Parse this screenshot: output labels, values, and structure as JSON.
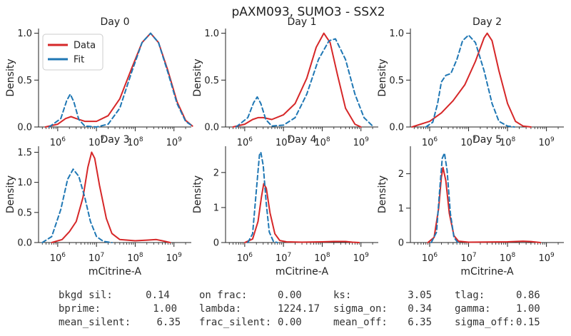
{
  "title": "pAXM093, SUMO3 - SSX2",
  "legend": {
    "items": [
      {
        "label": "Data",
        "color": "#d62728"
      },
      {
        "label": "Fit",
        "color": "#1f77b4"
      }
    ]
  },
  "chart_data": {
    "type": "line",
    "x_scale": "log",
    "xlabel": "mCitrine-A",
    "ylabel": "Density",
    "x_tick_labels": [
      "10^6",
      "10^7",
      "10^8",
      "10^9"
    ],
    "panels": [
      {
        "title": "Day 0",
        "ylim": [
          0,
          1.05
        ],
        "yticks": [
          "0.0",
          "0.5",
          "1.0"
        ],
        "series": [
          {
            "name": "Data",
            "color": "#d62728",
            "style": "solid",
            "points": [
              [
                480000.0,
                0
              ],
              [
                1000000.0,
                0.03
              ],
              [
                1600000.0,
                0.09
              ],
              [
                2200000.0,
                0.11
              ],
              [
                3000000.0,
                0.09
              ],
              [
                5000000.0,
                0.06
              ],
              [
                10000000.0,
                0.06
              ],
              [
                20000000.0,
                0.12
              ],
              [
                40000000.0,
                0.3
              ],
              [
                80000000.0,
                0.62
              ],
              [
                150000000.0,
                0.9
              ],
              [
                250000000.0,
                1.0
              ],
              [
                400000000.0,
                0.9
              ],
              [
                700000000.0,
                0.6
              ],
              [
                1200000000.0,
                0.27
              ],
              [
                2000000000.0,
                0.07
              ],
              [
                3000000000.0,
                0.01
              ]
            ]
          },
          {
            "name": "Fit",
            "color": "#1f77b4",
            "style": "dashed",
            "points": [
              [
                600000.0,
                0
              ],
              [
                1200000.0,
                0.09
              ],
              [
                1700000.0,
                0.28
              ],
              [
                2100000.0,
                0.35
              ],
              [
                2600000.0,
                0.27
              ],
              [
                3500000.0,
                0.08
              ],
              [
                5000000.0,
                0.01
              ],
              [
                10000000.0,
                0
              ],
              [
                20000000.0,
                0.03
              ],
              [
                40000000.0,
                0.2
              ],
              [
                80000000.0,
                0.58
              ],
              [
                150000000.0,
                0.9
              ],
              [
                250000000.0,
                1.0
              ],
              [
                400000000.0,
                0.9
              ],
              [
                700000000.0,
                0.58
              ],
              [
                1200000000.0,
                0.25
              ],
              [
                2000000000.0,
                0.06
              ],
              [
                3000000000.0,
                0.01
              ]
            ]
          }
        ]
      },
      {
        "title": "Day 1",
        "ylim": [
          0,
          1.05
        ],
        "yticks": [
          "0.0",
          "0.5",
          "1.0"
        ],
        "series": [
          {
            "name": "Data",
            "color": "#d62728",
            "style": "solid",
            "points": [
              [
                500000.0,
                0
              ],
              [
                1000000.0,
                0.03
              ],
              [
                1600000.0,
                0.08
              ],
              [
                2200000.0,
                0.1
              ],
              [
                3000000.0,
                0.1
              ],
              [
                5000000.0,
                0.08
              ],
              [
                10000000.0,
                0.13
              ],
              [
                20000000.0,
                0.25
              ],
              [
                40000000.0,
                0.52
              ],
              [
                70000000.0,
                0.85
              ],
              [
                110000000.0,
                1.0
              ],
              [
                160000000.0,
                0.9
              ],
              [
                250000000.0,
                0.55
              ],
              [
                400000000.0,
                0.2
              ],
              [
                700000000.0,
                0.03
              ],
              [
                1000000000.0,
                0.0
              ]
            ]
          },
          {
            "name": "Fit",
            "color": "#1f77b4",
            "style": "dashed",
            "points": [
              [
                600000.0,
                0
              ],
              [
                1200000.0,
                0.1
              ],
              [
                1700000.0,
                0.26
              ],
              [
                2100000.0,
                0.32
              ],
              [
                2600000.0,
                0.25
              ],
              [
                3500000.0,
                0.08
              ],
              [
                5000000.0,
                0.01
              ],
              [
                10000000.0,
                0.02
              ],
              [
                20000000.0,
                0.1
              ],
              [
                40000000.0,
                0.35
              ],
              [
                80000000.0,
                0.72
              ],
              [
                150000000.0,
                0.92
              ],
              [
                220000000.0,
                0.94
              ],
              [
                400000000.0,
                0.72
              ],
              [
                700000000.0,
                0.35
              ],
              [
                1200000000.0,
                0.1
              ],
              [
                2000000000.0,
                0.01
              ]
            ]
          }
        ]
      },
      {
        "title": "Day 2",
        "ylim": [
          0,
          1.05
        ],
        "yticks": [
          "0.0",
          "0.5",
          "1.0"
        ],
        "series": [
          {
            "name": "Data",
            "color": "#d62728",
            "style": "solid",
            "points": [
              [
                350000.0,
                0
              ],
              [
                1000000.0,
                0.06
              ],
              [
                2000000.0,
                0.15
              ],
              [
                4000000.0,
                0.28
              ],
              [
                8000000.0,
                0.45
              ],
              [
                15000000.0,
                0.7
              ],
              [
                25000000.0,
                0.95
              ],
              [
                30000000.0,
                1.0
              ],
              [
                40000000.0,
                0.92
              ],
              [
                60000000.0,
                0.6
              ],
              [
                100000000.0,
                0.25
              ],
              [
                160000000.0,
                0.06
              ],
              [
                250000000.0,
                0.01
              ],
              [
                400000000.0,
                0
              ]
            ]
          },
          {
            "name": "Fit",
            "color": "#1f77b4",
            "style": "dashed",
            "points": [
              [
                800000.0,
                0
              ],
              [
                1200000.0,
                0.05
              ],
              [
                1600000.0,
                0.25
              ],
              [
                2000000.0,
                0.48
              ],
              [
                2600000.0,
                0.55
              ],
              [
                3500000.0,
                0.57
              ],
              [
                5000000.0,
                0.72
              ],
              [
                7000000.0,
                0.92
              ],
              [
                10000000.0,
                0.98
              ],
              [
                15000000.0,
                0.9
              ],
              [
                25000000.0,
                0.6
              ],
              [
                40000000.0,
                0.25
              ],
              [
                60000000.0,
                0.06
              ],
              [
                100000000.0,
                0.01
              ],
              [
                150000000.0,
                0
              ]
            ]
          }
        ]
      },
      {
        "title": "Day 3",
        "ylim": [
          0,
          1.6
        ],
        "yticks": [
          "0.0",
          "0.5",
          "1.0",
          "1.5"
        ],
        "series": [
          {
            "name": "Data",
            "color": "#d62728",
            "style": "solid",
            "points": [
              [
                700000.0,
                0
              ],
              [
                1300000.0,
                0.05
              ],
              [
                2000000.0,
                0.18
              ],
              [
                3000000.0,
                0.35
              ],
              [
                4500000.0,
                0.75
              ],
              [
                6000000.0,
                1.25
              ],
              [
                7500000.0,
                1.5
              ],
              [
                9000000.0,
                1.4
              ],
              [
                12000000.0,
                0.95
              ],
              [
                18000000.0,
                0.4
              ],
              [
                25000000.0,
                0.15
              ],
              [
                40000000.0,
                0.05
              ],
              [
                100000000.0,
                0.03
              ],
              [
                200000000.0,
                0.04
              ],
              [
                350000000.0,
                0.05
              ],
              [
                500000000.0,
                0.03
              ],
              [
                800000000.0,
                0
              ]
            ]
          },
          {
            "name": "Fit",
            "color": "#1f77b4",
            "style": "dashed",
            "points": [
              [
                400000.0,
                0
              ],
              [
                700000.0,
                0.1
              ],
              [
                1200000.0,
                0.55
              ],
              [
                1800000.0,
                1.05
              ],
              [
                2500000.0,
                1.22
              ],
              [
                3500000.0,
                1.1
              ],
              [
                5000000.0,
                0.75
              ],
              [
                7000000.0,
                0.35
              ],
              [
                10000000.0,
                0.1
              ],
              [
                15000000.0,
                0.02
              ],
              [
                25000000.0,
                0
              ]
            ]
          }
        ]
      },
      {
        "title": "Day 4",
        "ylim": [
          0,
          2.75
        ],
        "yticks": [
          "0",
          "1",
          "2"
        ],
        "series": [
          {
            "name": "Data",
            "color": "#d62728",
            "style": "solid",
            "points": [
              [
                1000000.0,
                0
              ],
              [
                1600000.0,
                0.1
              ],
              [
                2200000.0,
                0.6
              ],
              [
                2700000.0,
                1.3
              ],
              [
                3100000.0,
                1.68
              ],
              [
                3600000.0,
                1.55
              ],
              [
                4500000.0,
                0.85
              ],
              [
                6000000.0,
                0.25
              ],
              [
                8000000.0,
                0.06
              ],
              [
                12000000.0,
                0.02
              ],
              [
                30000000.0,
                0.01
              ],
              [
                100000000.0,
                0.02
              ],
              [
                200000000.0,
                0.03
              ],
              [
                400000000.0,
                0.03
              ],
              [
                600000000.0,
                0.01
              ],
              [
                900000000.0,
                0
              ]
            ]
          },
          {
            "name": "Fit",
            "color": "#1f77b4",
            "style": "dashed",
            "points": [
              [
                1200000.0,
                0
              ],
              [
                1600000.0,
                0.25
              ],
              [
                2000000.0,
                1.5
              ],
              [
                2400000.0,
                2.5
              ],
              [
                2600000.0,
                2.58
              ],
              [
                3000000.0,
                2.2
              ],
              [
                3600000.0,
                1.1
              ],
              [
                4300000.0,
                0.3
              ],
              [
                5500000.0,
                0.03
              ],
              [
                7000000.0,
                0
              ]
            ]
          }
        ]
      },
      {
        "title": "Day 5",
        "ylim": [
          0,
          2.8
        ],
        "yticks": [
          "0",
          "1",
          "2"
        ],
        "series": [
          {
            "name": "Data",
            "color": "#d62728",
            "style": "solid",
            "points": [
              [
                900000.0,
                0
              ],
              [
                1300000.0,
                0.15
              ],
              [
                1700000.0,
                1.0
              ],
              [
                2000000.0,
                1.9
              ],
              [
                2200000.0,
                2.18
              ],
              [
                2600000.0,
                1.8
              ],
              [
                3200000.0,
                0.85
              ],
              [
                4200000.0,
                0.2
              ],
              [
                5500000.0,
                0.04
              ],
              [
                10000000.0,
                0.01
              ],
              [
                100000000.0,
                0.02
              ],
              [
                250000000.0,
                0.04
              ],
              [
                400000000.0,
                0.03
              ],
              [
                700000000.0,
                0
              ]
            ]
          },
          {
            "name": "Fit",
            "color": "#1f77b4",
            "style": "dashed",
            "points": [
              [
                1100000.0,
                0
              ],
              [
                1500000.0,
                0.3
              ],
              [
                1800000.0,
                1.5
              ],
              [
                2100000.0,
                2.45
              ],
              [
                2400000.0,
                2.6
              ],
              [
                2800000.0,
                2.1
              ],
              [
                3400000.0,
                0.85
              ],
              [
                4200000.0,
                0.15
              ],
              [
                5200000.0,
                0.01
              ],
              [
                6000000.0,
                0
              ]
            ]
          }
        ]
      }
    ]
  },
  "stats": {
    "rows": [
      [
        {
          "label": "bkgd sil:",
          "value": "0.14"
        },
        {
          "label": "on frac:",
          "value": "0.00"
        },
        {
          "label": "ks:",
          "value": "3.05"
        },
        {
          "label": "tlag:",
          "value": "0.86"
        }
      ],
      [
        {
          "label": "bprime:",
          "value": "1.00"
        },
        {
          "label": "lambda:",
          "value": "1224.17"
        },
        {
          "label": "sigma_on:",
          "value": "0.34"
        },
        {
          "label": "gamma:",
          "value": "1.00"
        }
      ],
      [
        {
          "label": "mean_silent:",
          "value": "6.35"
        },
        {
          "label": "frac_silent:",
          "value": "0.00"
        },
        {
          "label": "mean_off:",
          "value": "6.35"
        },
        {
          "label": "sigma_off:",
          "value": "0.15"
        }
      ]
    ]
  }
}
